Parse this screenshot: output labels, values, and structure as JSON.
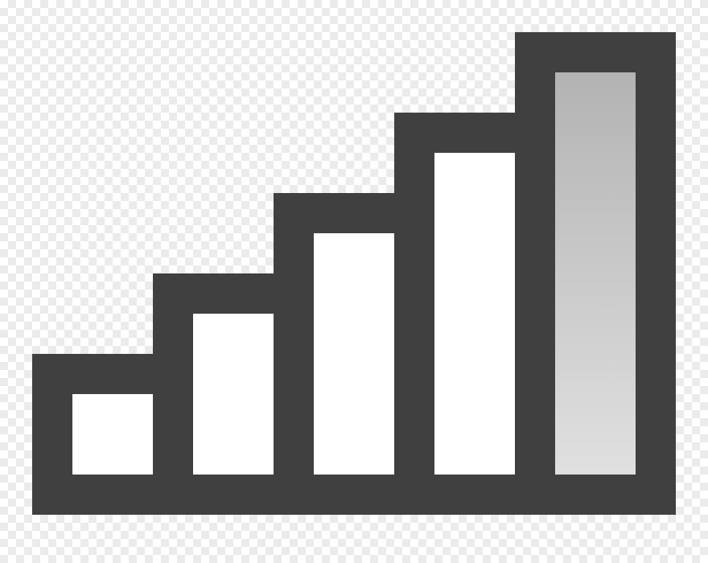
{
  "icon": {
    "name": "signal-strength-icon",
    "bars_total": 5,
    "bars_highlighted_index": 4,
    "colors": {
      "outline": "#404040",
      "bar_fill": "#ffffff",
      "highlight_top": "#b3b3b3",
      "highlight_bottom": "#e0e0e0",
      "checker_light": "#ffffff",
      "checker_dark": "#ebebeb"
    }
  }
}
